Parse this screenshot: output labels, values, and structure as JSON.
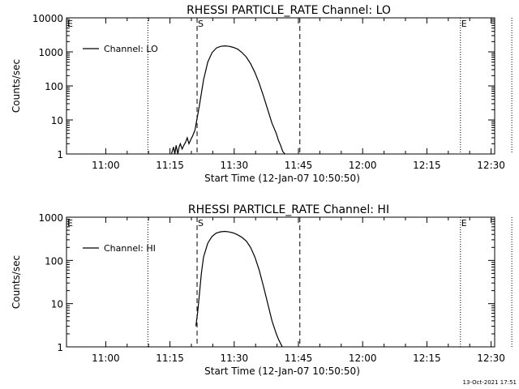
{
  "chart_data": [
    {
      "type": "line",
      "title": "RHESSI PARTICLE_RATE Channel: LO",
      "xlabel": "Start Time (12-Jan-07 10:50:50)",
      "ylabel": "Counts/sec",
      "y_scale": "log",
      "ylim": [
        1,
        10000
      ],
      "xlim_minutes_from_start": [
        0,
        100
      ],
      "x_tick_labels": [
        "11:00",
        "11:15",
        "11:30",
        "11:45",
        "12:00",
        "12:15",
        "12:30"
      ],
      "y_tick_labels": [
        "1",
        "10",
        "100",
        "1000",
        "10000"
      ],
      "legend": "top-left",
      "grid": false,
      "series": [
        {
          "name": "Channel: LO",
          "x": [
            24.5,
            25.0,
            25.3,
            25.6,
            26.0,
            26.3,
            26.6,
            27.0,
            27.4,
            27.8,
            28.2,
            28.6,
            29.0,
            29.5,
            30.0,
            31.0,
            32.0,
            33.0,
            34.0,
            35.0,
            36.0,
            37.0,
            38.0,
            39.0,
            40.0,
            41.0,
            42.0,
            43.0,
            44.0,
            45.0,
            46.0,
            47.0,
            48.0,
            49.0,
            49.5,
            50.0,
            50.5,
            51.0
          ],
          "y": [
            1,
            1.6,
            1,
            1.8,
            1,
            1.6,
            2.0,
            1.4,
            1.8,
            2.2,
            3.0,
            2.0,
            2.6,
            3.5,
            5,
            25,
            150,
            500,
            950,
            1300,
            1450,
            1500,
            1450,
            1350,
            1200,
            950,
            700,
            450,
            250,
            120,
            50,
            20,
            8,
            4,
            2.5,
            1.8,
            1.2,
            1
          ]
        }
      ],
      "annotations": [
        {
          "label": "E",
          "x_minutes": 0
        },
        {
          "label": "S",
          "x_minutes": 30.5
        },
        {
          "label": "E",
          "x_minutes": 92
        }
      ],
      "vertical_dotted_lines_minutes": [
        19,
        92,
        104
      ],
      "vertical_dashed_lines_minutes": [
        30.5,
        54.5
      ]
    },
    {
      "type": "line",
      "title": "RHESSI PARTICLE_RATE Channel: HI",
      "xlabel": "Start Time (12-Jan-07 10:50:50)",
      "ylabel": "Counts/sec",
      "y_scale": "log",
      "ylim": [
        1,
        1000
      ],
      "xlim_minutes_from_start": [
        0,
        100
      ],
      "x_tick_labels": [
        "11:00",
        "11:15",
        "11:30",
        "11:45",
        "12:00",
        "12:15",
        "12:30"
      ],
      "y_tick_labels": [
        "1",
        "10",
        "100",
        "1000"
      ],
      "legend": "top-left",
      "grid": false,
      "series": [
        {
          "name": "Channel: HI",
          "x": [
            30.2,
            30.6,
            31.0,
            31.5,
            32.0,
            33.0,
            34.0,
            35.0,
            36.0,
            37.0,
            38.0,
            39.0,
            40.0,
            41.0,
            42.0,
            43.0,
            44.0,
            45.0,
            46.0,
            47.0,
            48.0,
            49.0,
            49.5,
            50.0,
            50.4
          ],
          "y": [
            3,
            6,
            15,
            50,
            120,
            250,
            360,
            430,
            460,
            470,
            455,
            430,
            390,
            340,
            280,
            200,
            120,
            60,
            25,
            10,
            4,
            2,
            1.5,
            1.2,
            1
          ]
        }
      ],
      "annotations": [
        {
          "label": "E",
          "x_minutes": 0
        },
        {
          "label": "S",
          "x_minutes": 30.5
        },
        {
          "label": "E",
          "x_minutes": 92
        }
      ],
      "vertical_dotted_lines_minutes": [
        19,
        92,
        104
      ],
      "vertical_dashed_lines_minutes": [
        30.5,
        54.5
      ]
    }
  ],
  "footer": {
    "timestamp": "13-Oct-2021 17:51"
  }
}
